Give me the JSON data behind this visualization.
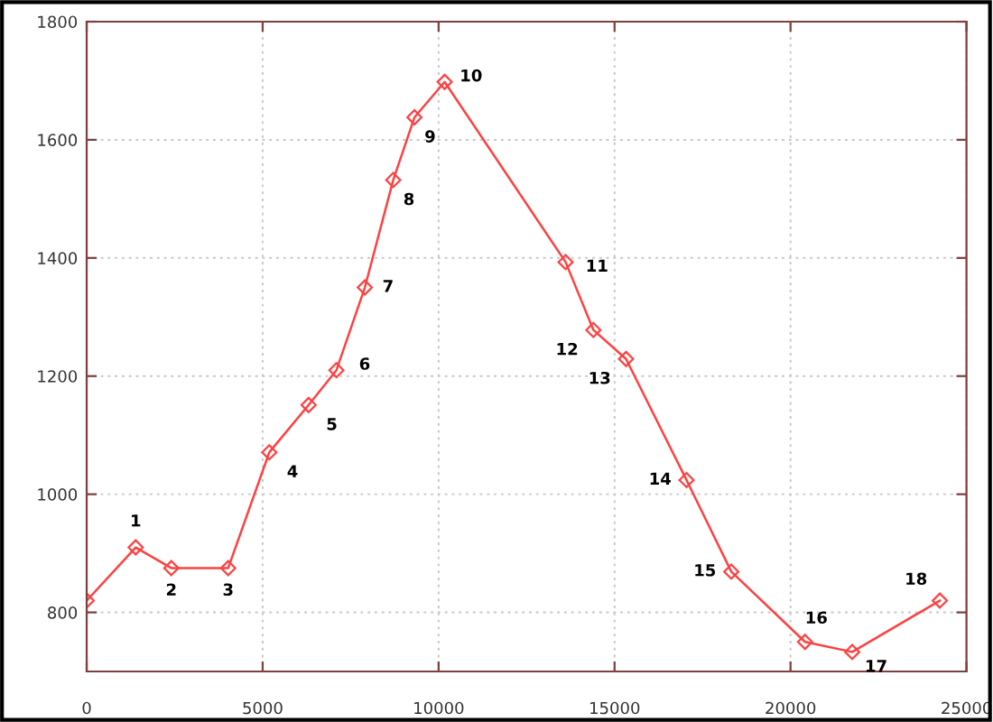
{
  "chart_data": {
    "type": "line",
    "x": [
      0,
      1392,
      2405,
      4021,
      5189,
      6306,
      7096,
      7904,
      8711,
      9313,
      10172,
      13608,
      14399,
      15326,
      17045,
      18316,
      20412,
      21753,
      24244
    ],
    "series": [
      {
        "color": "#ff4040",
        "values": [
          820,
          910,
          875,
          875,
          1071,
          1151,
          1210,
          1350,
          1532,
          1638,
          1698,
          1393,
          1278,
          1229,
          1024,
          869,
          750,
          733,
          820
        ]
      }
    ],
    "xlim": [
      0,
      25000
    ],
    "xticks": [
      0,
      5000,
      10000,
      15000,
      20000,
      25000
    ],
    "ylim": [
      700,
      1800
    ],
    "yticks": [
      800,
      1000,
      1200,
      1400,
      1600,
      1800
    ],
    "grid": true,
    "marker": "diamond",
    "line_style": "solid",
    "annotations": [
      {
        "text": "1",
        "x": 1392,
        "y": 910
      },
      {
        "text": "2",
        "x": 2405,
        "y": 875
      },
      {
        "text": "3",
        "x": 4021,
        "y": 875
      },
      {
        "text": "4",
        "x": 5189,
        "y": 1071
      },
      {
        "text": "5",
        "x": 6306,
        "y": 1151
      },
      {
        "text": "6",
        "x": 7096,
        "y": 1210
      },
      {
        "text": "7",
        "x": 7904,
        "y": 1350
      },
      {
        "text": "8",
        "x": 8711,
        "y": 1532
      },
      {
        "text": "9",
        "x": 9313,
        "y": 1638
      },
      {
        "text": "10",
        "x": 10172,
        "y": 1698
      },
      {
        "text": "11",
        "x": 13608,
        "y": 1393
      },
      {
        "text": "12",
        "x": 14399,
        "y": 1278
      },
      {
        "text": "13",
        "x": 15326,
        "y": 1229
      },
      {
        "text": "14",
        "x": 17045,
        "y": 1024
      },
      {
        "text": "15",
        "x": 18316,
        "y": 869
      },
      {
        "text": "16",
        "x": 20412,
        "y": 750
      },
      {
        "text": "17",
        "x": 21753,
        "y": 733
      },
      {
        "text": "18",
        "x": 24244,
        "y": 820
      }
    ]
  }
}
